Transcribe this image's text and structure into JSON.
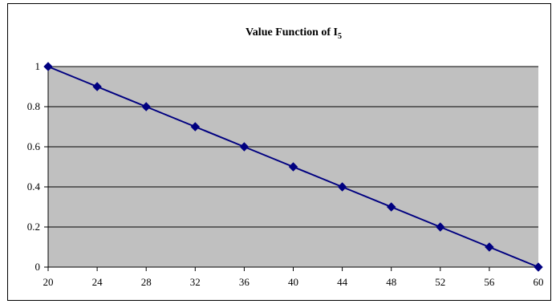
{
  "chart_data": {
    "type": "line",
    "title": "Value Function of I",
    "title_subscript": "5",
    "xlabel": "",
    "ylabel": "",
    "x": [
      20,
      24,
      28,
      32,
      36,
      40,
      44,
      48,
      52,
      56,
      60
    ],
    "series": [
      {
        "values": [
          1,
          0.9,
          0.8,
          0.7,
          0.6,
          0.5,
          0.4,
          0.3,
          0.2,
          0.1,
          0
        ],
        "color": "#000080",
        "marker": "diamond"
      }
    ],
    "xlim": [
      20,
      60
    ],
    "ylim": [
      0,
      1
    ],
    "x_ticks": [
      "20",
      "24",
      "28",
      "32",
      "36",
      "40",
      "44",
      "48",
      "52",
      "56",
      "60"
    ],
    "y_ticks": [
      "0",
      "0.2",
      "0.4",
      "0.6",
      "0.8",
      "1"
    ],
    "grid": "horizontal",
    "legend": "none",
    "colors": {
      "plot_background": "#c0c0c0",
      "gridline": "#000000",
      "series": "#000080"
    }
  }
}
